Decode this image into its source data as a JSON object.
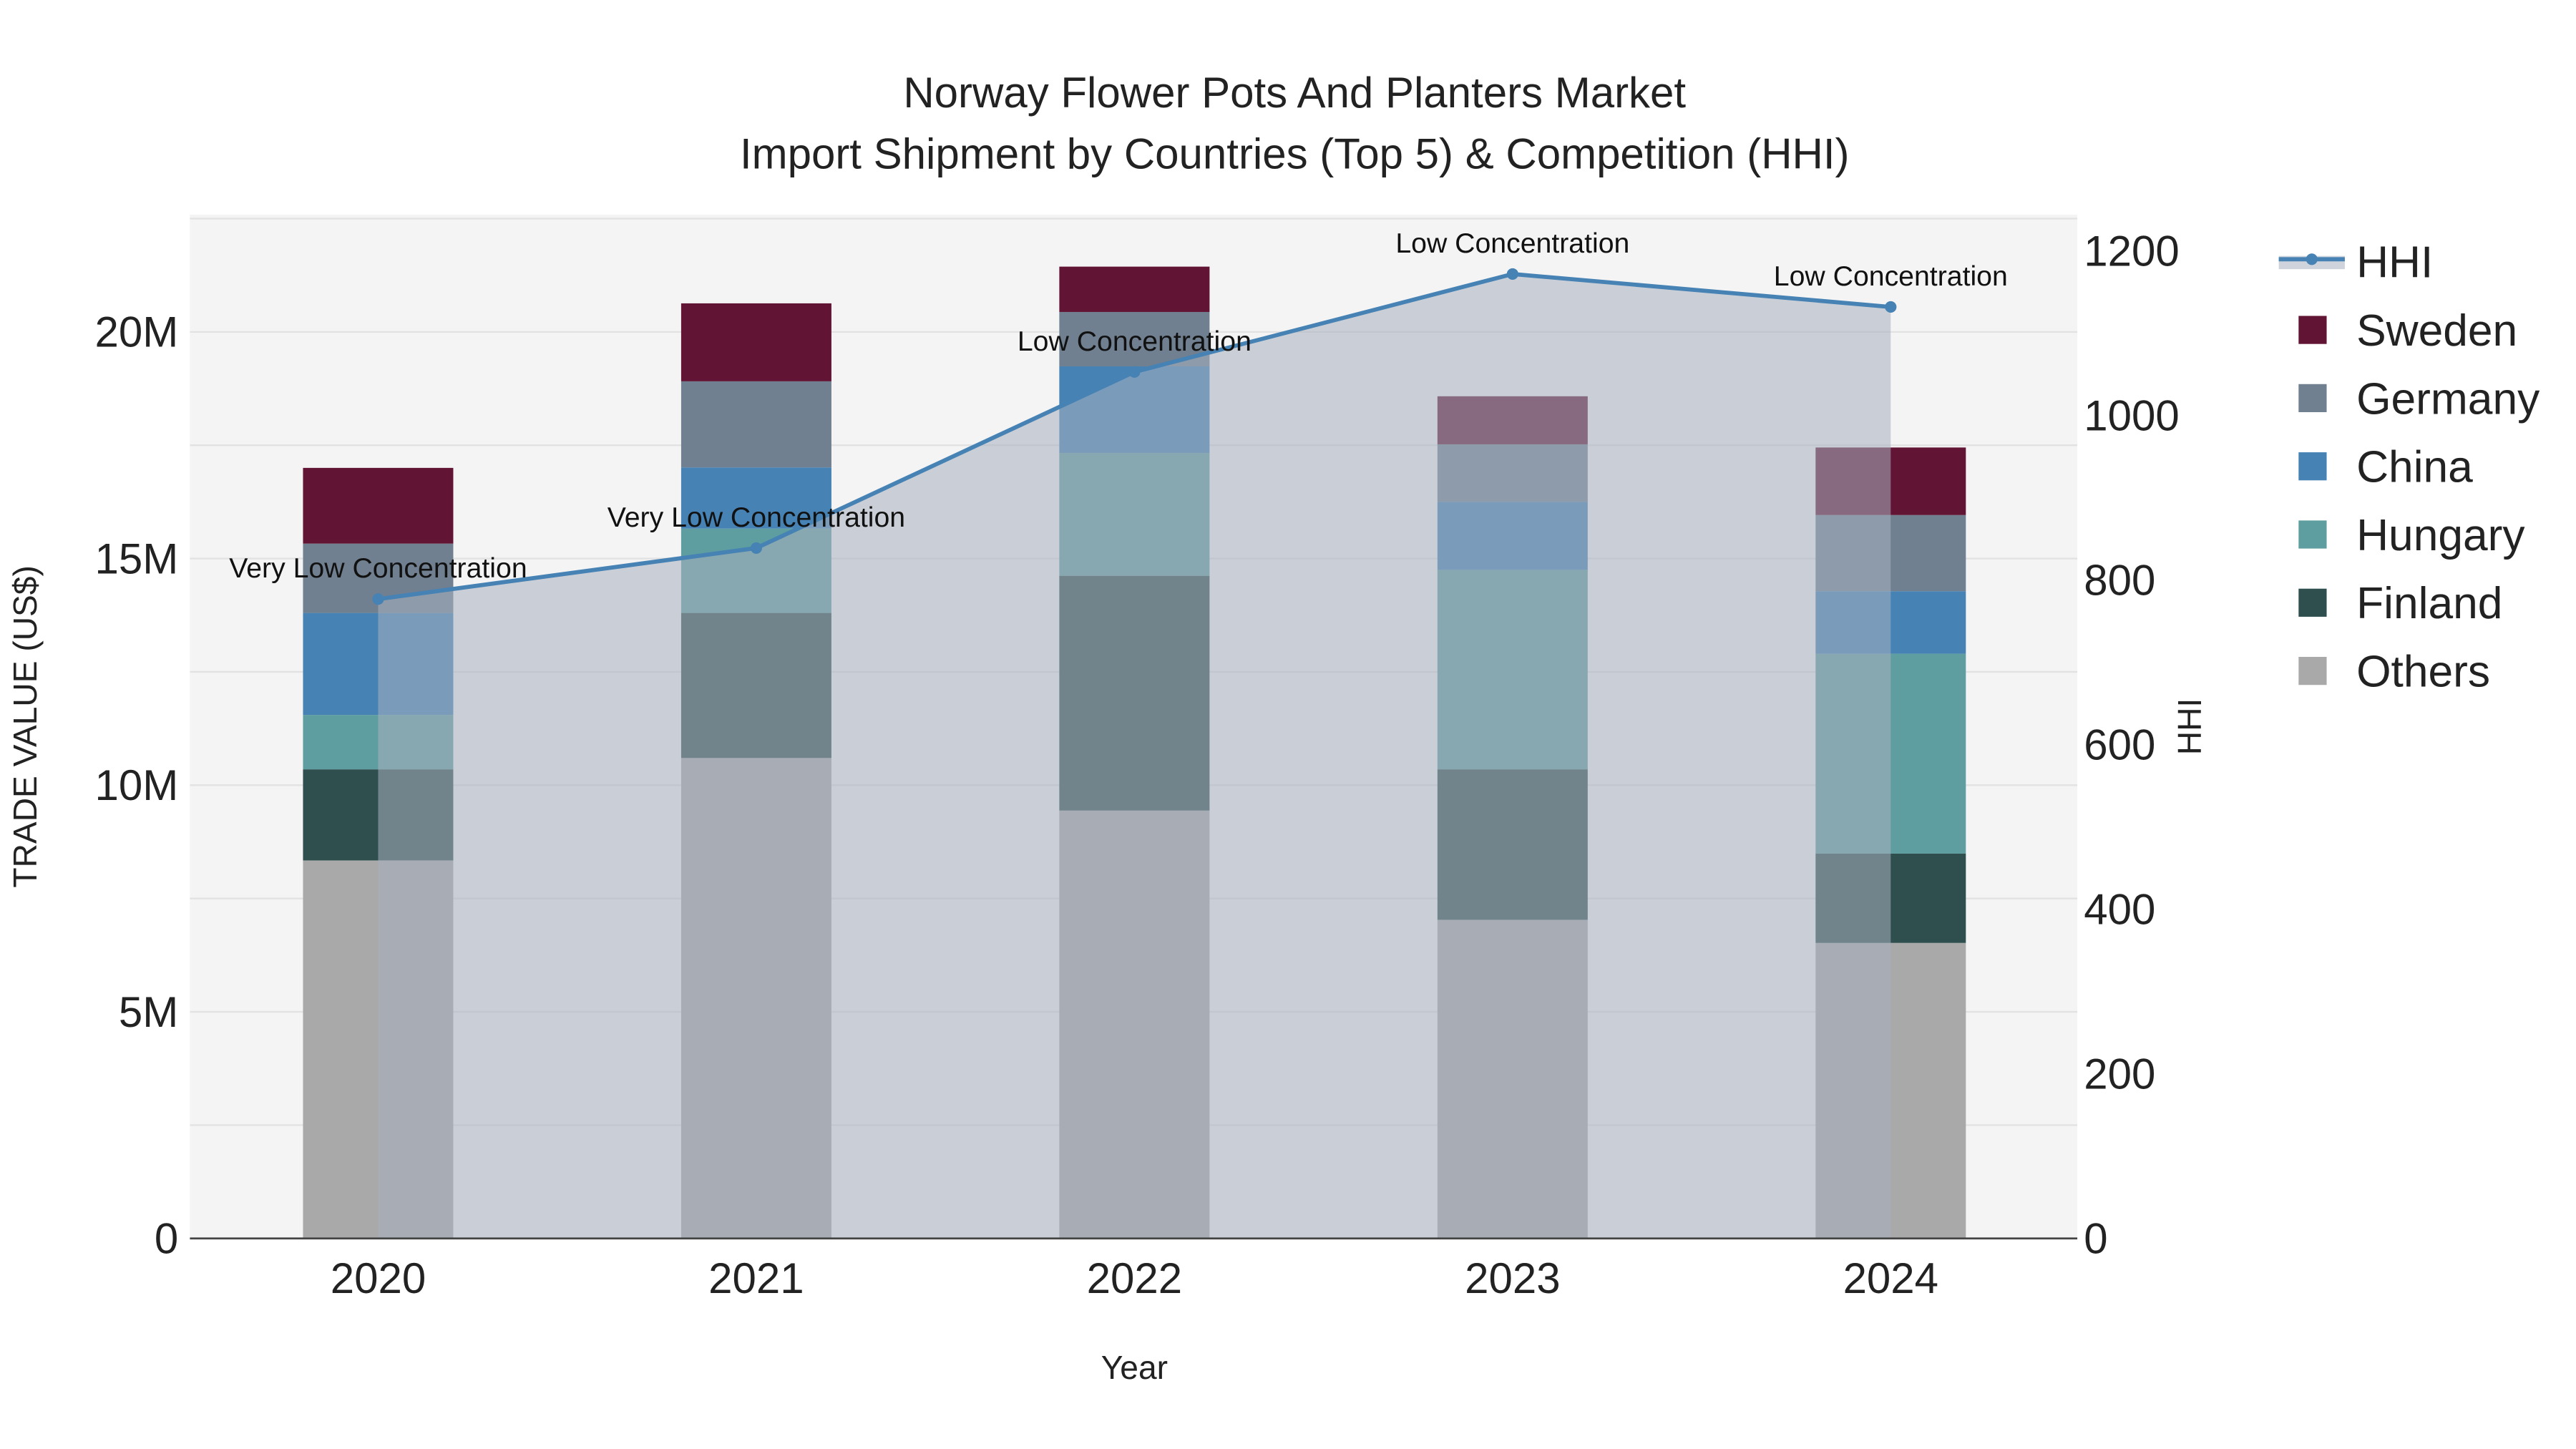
{
  "chart_data": {
    "type": "bar",
    "title_line1": "Norway Flower Pots And Planters Market",
    "title_line2": "Import Shipment by Countries (Top 5) & Competition (HHI)",
    "xlabel": "Year",
    "ylabel": "TRADE VALUE (US$)",
    "y2label": "HHI",
    "categories": [
      "2020",
      "2021",
      "2022",
      "2023",
      "2024"
    ],
    "ylim": [
      0,
      22500000
    ],
    "y_ticks": [
      0,
      5000000,
      10000000,
      15000000,
      20000000
    ],
    "y_tick_labels": [
      "0",
      "5M",
      "10M",
      "15M",
      "20M"
    ],
    "y2lim": [
      0,
      1250
    ],
    "y2_ticks": [
      0,
      200,
      400,
      600,
      800,
      1000,
      1200
    ],
    "y2_tick_labels": [
      "0",
      "200",
      "400",
      "600",
      "800",
      "1000",
      "1200"
    ],
    "series": [
      {
        "name": "Others",
        "color": "#a9a9a9",
        "values": [
          8340000,
          10600000,
          9440000,
          7030000,
          6520000
        ]
      },
      {
        "name": "Finland",
        "color": "#2f4f4f",
        "values": [
          2010000,
          3200000,
          5180000,
          3320000,
          1970000
        ]
      },
      {
        "name": "Hungary",
        "color": "#5f9ea0",
        "values": [
          1200000,
          1860000,
          2710000,
          4400000,
          4410000
        ]
      },
      {
        "name": "China",
        "color": "#4682b4",
        "values": [
          2250000,
          1350000,
          1910000,
          1500000,
          1380000
        ]
      },
      {
        "name": "Germany",
        "color": "#708090",
        "values": [
          1530000,
          1900000,
          1200000,
          1270000,
          1680000
        ]
      },
      {
        "name": "Sweden",
        "color": "#621434",
        "values": [
          1670000,
          1720000,
          1000000,
          1060000,
          1490000
        ]
      }
    ],
    "hhi": {
      "name": "HHI",
      "color": "#4682b4",
      "values": [
        777,
        839,
        1053,
        1172,
        1132
      ],
      "annotations": [
        "Very Low Concentration",
        "Very Low Concentration",
        "Low Concentration",
        "Low Concentration",
        "Low Concentration"
      ]
    },
    "legend": [
      "HHI",
      "Sweden",
      "Germany",
      "China",
      "Hungary",
      "Finland",
      "Others"
    ],
    "legend_placement": "right",
    "grid": true
  }
}
